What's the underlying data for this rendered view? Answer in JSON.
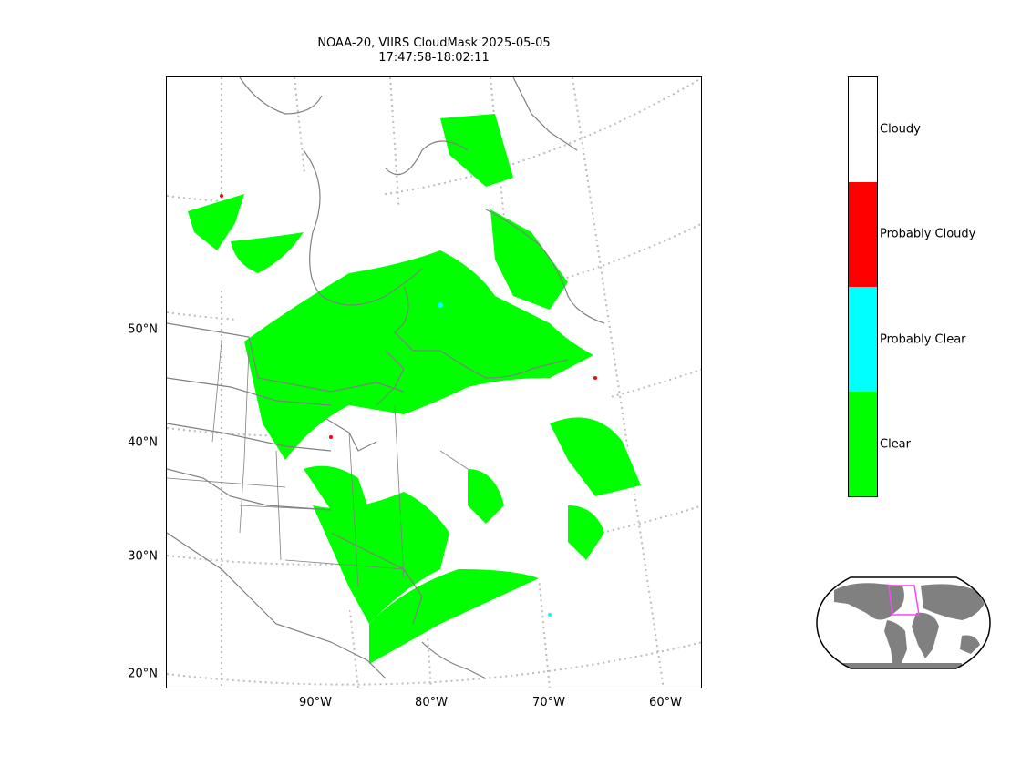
{
  "title": {
    "line1": "NOAA-20, VIIRS CloudMask 2025-05-05",
    "line2": "17:47:58-18:02:11"
  },
  "map": {
    "lat_labels": [
      "50°N",
      "40°N",
      "30°N",
      "20°N"
    ],
    "lon_labels": [
      "90°W",
      "80°W",
      "70°W",
      "60°W"
    ],
    "graticule_color": "#bbbbbb",
    "coastline_color": "#808080"
  },
  "colorbar": {
    "categories": [
      {
        "label": "Cloudy",
        "color": "#ffffff"
      },
      {
        "label": "Probably Cloudy",
        "color": "#ff0000"
      },
      {
        "label": "Probably Clear",
        "color": "#00ffff"
      },
      {
        "label": "Clear",
        "color": "#00ff00"
      }
    ]
  },
  "inset": {
    "land_color": "#808080",
    "footprint_color": "#ff44ff"
  }
}
